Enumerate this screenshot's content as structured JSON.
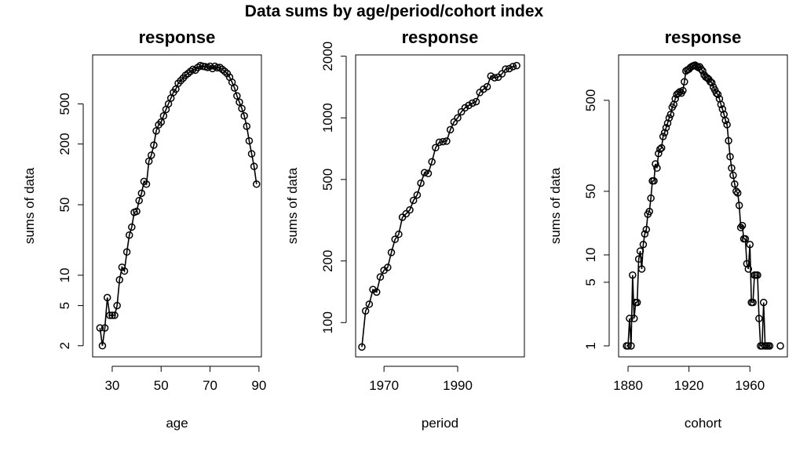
{
  "title": "Data sums by age/period/cohort index",
  "chart_data": [
    {
      "type": "line",
      "title": "response",
      "xlabel": "age",
      "ylabel": "sums of data",
      "log_y": true,
      "color": "#000000",
      "x": [
        25,
        26,
        27,
        28,
        29,
        30,
        31,
        32,
        33,
        34,
        35,
        36,
        37,
        38,
        39,
        40,
        41,
        42,
        43,
        44,
        45,
        46,
        47,
        48,
        49,
        50,
        51,
        52,
        53,
        54,
        55,
        56,
        57,
        58,
        59,
        60,
        61,
        62,
        63,
        64,
        65,
        66,
        67,
        68,
        69,
        70,
        71,
        72,
        73,
        74,
        75,
        76,
        77,
        78,
        79,
        80,
        81,
        82,
        83,
        84,
        85,
        86,
        87,
        88,
        89
      ],
      "values": [
        3,
        2,
        3,
        6,
        4,
        4,
        4,
        5,
        9,
        12,
        11,
        17,
        25,
        30,
        42,
        43,
        55,
        65,
        85,
        80,
        135,
        155,
        195,
        270,
        310,
        330,
        380,
        440,
        500,
        570,
        650,
        700,
        800,
        850,
        900,
        960,
        1000,
        1050,
        1100,
        1080,
        1150,
        1200,
        1180,
        1170,
        1150,
        1180,
        1120,
        1180,
        1140,
        1150,
        1100,
        1050,
        1000,
        920,
        820,
        720,
        600,
        520,
        450,
        380,
        300,
        215,
        160,
        120,
        80
      ],
      "xlim": [
        22,
        91
      ],
      "xticks": [
        30,
        50,
        70,
        90
      ],
      "ylim": [
        1.55,
        1530
      ],
      "yticks": [
        2,
        5,
        10,
        50,
        200,
        500
      ]
    },
    {
      "type": "line",
      "title": "response",
      "xlabel": "period",
      "ylabel": "sums of data",
      "log_y": true,
      "color": "#000000",
      "x": [
        1964,
        1965,
        1966,
        1967,
        1968,
        1969,
        1970,
        1971,
        1972,
        1973,
        1974,
        1975,
        1976,
        1977,
        1978,
        1979,
        1980,
        1981,
        1982,
        1983,
        1984,
        1985,
        1986,
        1987,
        1988,
        1989,
        1990,
        1991,
        1992,
        1993,
        1994,
        1995,
        1996,
        1997,
        1998,
        1999,
        2000,
        2001,
        2002,
        2003,
        2004,
        2005,
        2006
      ],
      "values": [
        76,
        114,
        123,
        145,
        141,
        167,
        180,
        186,
        220,
        255,
        270,
        327,
        340,
        355,
        395,
        420,
        480,
        540,
        535,
        610,
        715,
        760,
        765,
        770,
        875,
        955,
        1000,
        1070,
        1120,
        1150,
        1180,
        1200,
        1330,
        1380,
        1420,
        1600,
        1570,
        1580,
        1640,
        1730,
        1740,
        1780,
        1800
      ],
      "xlim": [
        1962.3,
        2008.1
      ],
      "xticks": [
        1970,
        1990
      ],
      "ylim": [
        68,
        2030
      ],
      "yticks": [
        100,
        200,
        500,
        1000,
        2000
      ]
    },
    {
      "type": "line",
      "title": "response",
      "xlabel": "cohort",
      "ylabel": "sums of data",
      "log_y": true,
      "color": "#000000",
      "x": [
        1879,
        1880,
        1881,
        1882,
        1883,
        1884,
        1885,
        1886,
        1887,
        1888,
        1889,
        1890,
        1891,
        1892,
        1893,
        1894,
        1895,
        1896,
        1897,
        1898,
        1899,
        1900,
        1901,
        1902,
        1903,
        1904,
        1905,
        1906,
        1907,
        1908,
        1909,
        1910,
        1911,
        1912,
        1913,
        1914,
        1915,
        1916,
        1917,
        1918,
        1919,
        1920,
        1921,
        1922,
        1923,
        1924,
        1925,
        1926,
        1927,
        1928,
        1929,
        1930,
        1931,
        1932,
        1933,
        1934,
        1935,
        1936,
        1937,
        1938,
        1939,
        1940,
        1941,
        1942,
        1943,
        1944,
        1945,
        1946,
        1947,
        1948,
        1949,
        1950,
        1951,
        1952,
        1953,
        1954,
        1955,
        1956,
        1957,
        1958,
        1959,
        1960,
        1961,
        1962,
        1963,
        1964,
        1965,
        1966,
        1967,
        1968,
        1969,
        1970,
        1971,
        1972,
        1973,
        1974,
        1975,
        1976,
        1977,
        1978,
        1979,
        1980
      ],
      "values": [
        1,
        1,
        2,
        1,
        6,
        2,
        3,
        3,
        9,
        11,
        7,
        13,
        17,
        19,
        28,
        30,
        42,
        65,
        65,
        100,
        90,
        130,
        145,
        150,
        200,
        220,
        250,
        280,
        320,
        350,
        420,
        450,
        520,
        580,
        600,
        620,
        600,
        640,
        800,
        1050,
        1080,
        1100,
        1150,
        1180,
        1200,
        1220,
        1180,
        1150,
        1170,
        1100,
        1050,
        950,
        900,
        880,
        850,
        800,
        780,
        700,
        650,
        600,
        580,
        520,
        450,
        400,
        350,
        300,
        270,
        180,
        120,
        90,
        75,
        60,
        50,
        48,
        35,
        20,
        21,
        15,
        15,
        8,
        7,
        13,
        3,
        3,
        6,
        6,
        6,
        2,
        1,
        1,
        3,
        1,
        1,
        1,
        1,
        null,
        null,
        null,
        null,
        null,
        null,
        1
      ],
      "xlim": [
        1873.8,
        1984.6
      ],
      "xticks": [
        1880,
        1920,
        1960
      ],
      "ylim": [
        0.757,
        1578
      ],
      "yticks": [
        1,
        5,
        10,
        50,
        500
      ]
    }
  ]
}
